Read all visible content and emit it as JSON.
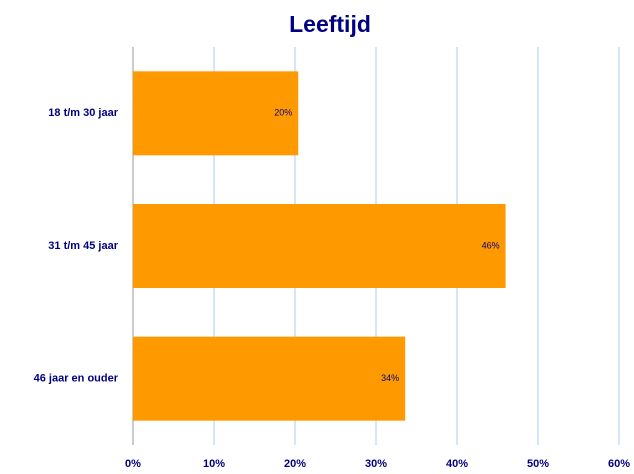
{
  "chart_data": {
    "type": "hbar",
    "title": "Leeftijd",
    "categories": [
      "18 t/m 30 jaar",
      "31 t/m 45 jaar",
      "46 jaar en ouder"
    ],
    "values": [
      20.4,
      46,
      33.6
    ],
    "value_labels": [
      "20%",
      "46%",
      "34%"
    ],
    "color": "#ff9900",
    "xlim": [
      0,
      60
    ],
    "xticks": [
      {
        "value": 0,
        "label": "0%"
      },
      {
        "value": 10,
        "label": "10%"
      },
      {
        "value": 20,
        "label": "20%"
      },
      {
        "value": 30,
        "label": "30%"
      },
      {
        "value": 40,
        "label": "40%"
      },
      {
        "value": 50,
        "label": "50%"
      },
      {
        "value": 60,
        "label": "60%"
      }
    ],
    "grid": true
  }
}
